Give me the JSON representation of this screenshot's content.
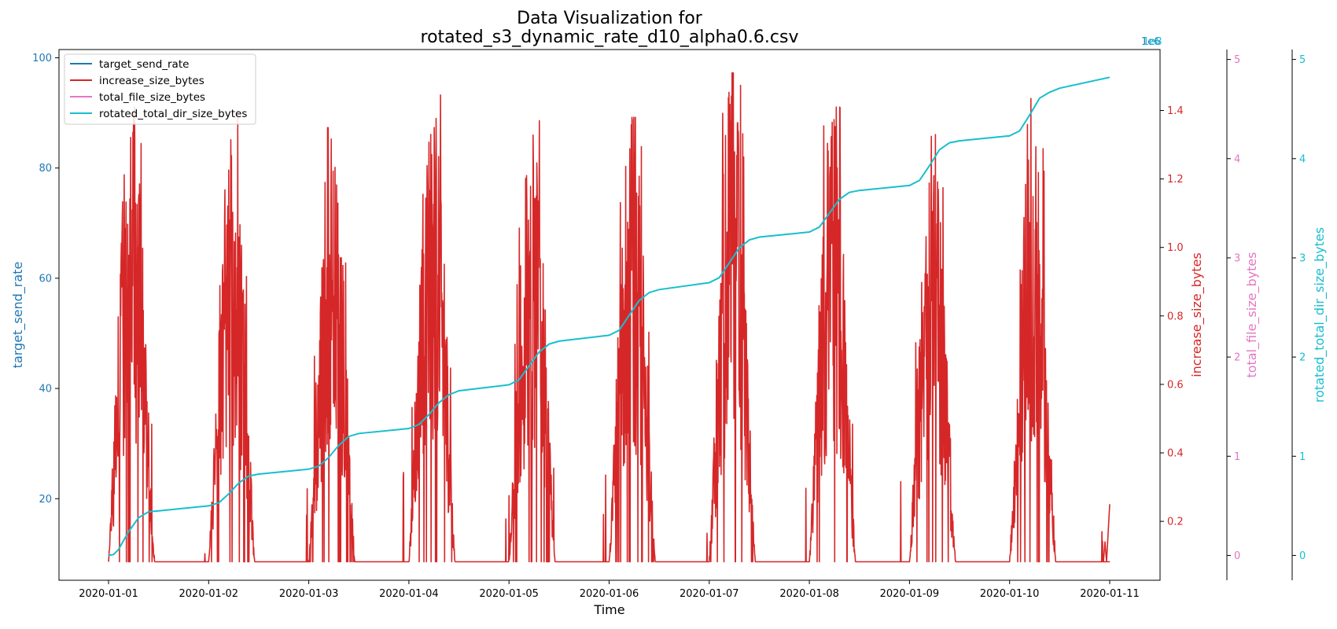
{
  "chart_data": {
    "type": "line",
    "title_line1": "Data Visualization for",
    "title_line2": "rotated_s3_dynamic_rate_d10_alpha0.6.csv",
    "xlabel": "Time",
    "x_ticks": [
      "2020-01-01",
      "2020-01-02",
      "2020-01-03",
      "2020-01-04",
      "2020-01-05",
      "2020-01-06",
      "2020-01-07",
      "2020-01-08",
      "2020-01-09",
      "2020-01-10",
      "2020-01-11"
    ],
    "x_range": [
      "2020-01-01",
      "2020-01-11"
    ],
    "axes": {
      "left": {
        "label": "target_send_rate",
        "color": "#1f77b4",
        "ticks": [
          20,
          40,
          60,
          80,
          100
        ],
        "ylim": [
          5.2,
          101.5
        ]
      },
      "right1": {
        "label": "increase_size_bytes",
        "color": "#d62728",
        "ticks": [
          "0.2",
          "0.4",
          "0.6",
          "0.8",
          "1.0",
          "1.2",
          "1.4"
        ],
        "ylim": [
          0.028,
          1.578
        ],
        "offset_label": "1e6"
      },
      "right2": {
        "label": "total_file_size_bytes",
        "color": "#e377c2",
        "ticks": [
          "0",
          "1",
          "2",
          "3",
          "4",
          "5"
        ],
        "ylim": [
          -0.25,
          5.1
        ]
      },
      "right3": {
        "label": "rotated_total_dir_size_bytes",
        "color": "#17becf",
        "ticks": [
          "0",
          "1",
          "2",
          "3",
          "4",
          "5"
        ],
        "ylim": [
          -0.25,
          5.1
        ],
        "offset_label": "1e8"
      }
    },
    "legend": {
      "position": "upper-left",
      "entries": [
        {
          "label": "target_send_rate",
          "color": "#1f77b4"
        },
        {
          "label": "increase_size_bytes",
          "color": "#d62728"
        },
        {
          "label": "total_file_size_bytes",
          "color": "#e377c2"
        },
        {
          "label": "rotated_total_dir_size_bytes",
          "color": "#17becf"
        }
      ]
    },
    "series": [
      {
        "name": "target_send_rate",
        "axis": "left",
        "color": "#1f77b4",
        "description": "hidden beneath increase_size_bytes; follows the same daily peaks",
        "daily_peak_center": 0.3,
        "peaks_fraction_of_axis": [
          0.88,
          0.89,
          0.92,
          0.97,
          0.88,
          0.93,
          0.98,
          0.92,
          0.84,
          0.95
        ]
      },
      {
        "name": "increase_size_bytes",
        "axis": "right1",
        "color": "#d62728",
        "baseline": 0.082,
        "daily_active_window_days": [
          0.0,
          0.5
        ],
        "daily_peaks": [
          1.41,
          1.4,
          1.35,
          1.5,
          1.37,
          1.38,
          1.51,
          1.41,
          1.33,
          1.46
        ],
        "final_spike": 0.25
      },
      {
        "name": "total_file_size_bytes",
        "axis": "right2",
        "color": "#e377c2",
        "values_constant": 0
      },
      {
        "name": "rotated_total_dir_size_bytes",
        "axis": "right3",
        "color": "#17becf",
        "x_days": [
          0,
          0.05,
          0.1,
          0.2,
          0.3,
          0.4,
          0.5,
          1.0,
          1.1,
          1.2,
          1.3,
          1.4,
          1.5,
          2.0,
          2.1,
          2.2,
          2.3,
          2.4,
          2.5,
          3.0,
          3.1,
          3.2,
          3.3,
          3.4,
          3.5,
          4.0,
          4.1,
          4.2,
          4.3,
          4.4,
          4.5,
          5.0,
          5.1,
          5.2,
          5.3,
          5.4,
          5.5,
          6.0,
          6.1,
          6.2,
          6.3,
          6.4,
          6.5,
          7.0,
          7.1,
          7.2,
          7.3,
          7.4,
          7.5,
          8.0,
          8.1,
          8.2,
          8.3,
          8.4,
          8.5,
          9.0,
          9.1,
          9.2,
          9.3,
          9.4,
          9.5,
          10.0
        ],
        "values": [
          0.0,
          0.01,
          0.06,
          0.24,
          0.38,
          0.44,
          0.45,
          0.5,
          0.53,
          0.62,
          0.73,
          0.8,
          0.82,
          0.87,
          0.9,
          0.99,
          1.11,
          1.2,
          1.23,
          1.28,
          1.32,
          1.42,
          1.54,
          1.62,
          1.66,
          1.72,
          1.77,
          1.91,
          2.05,
          2.13,
          2.16,
          2.22,
          2.27,
          2.42,
          2.57,
          2.65,
          2.68,
          2.75,
          2.8,
          2.95,
          3.1,
          3.18,
          3.21,
          3.26,
          3.31,
          3.45,
          3.59,
          3.66,
          3.68,
          3.73,
          3.78,
          3.93,
          4.09,
          4.16,
          4.18,
          4.23,
          4.28,
          4.44,
          4.61,
          4.67,
          4.71,
          4.82
        ]
      }
    ]
  }
}
